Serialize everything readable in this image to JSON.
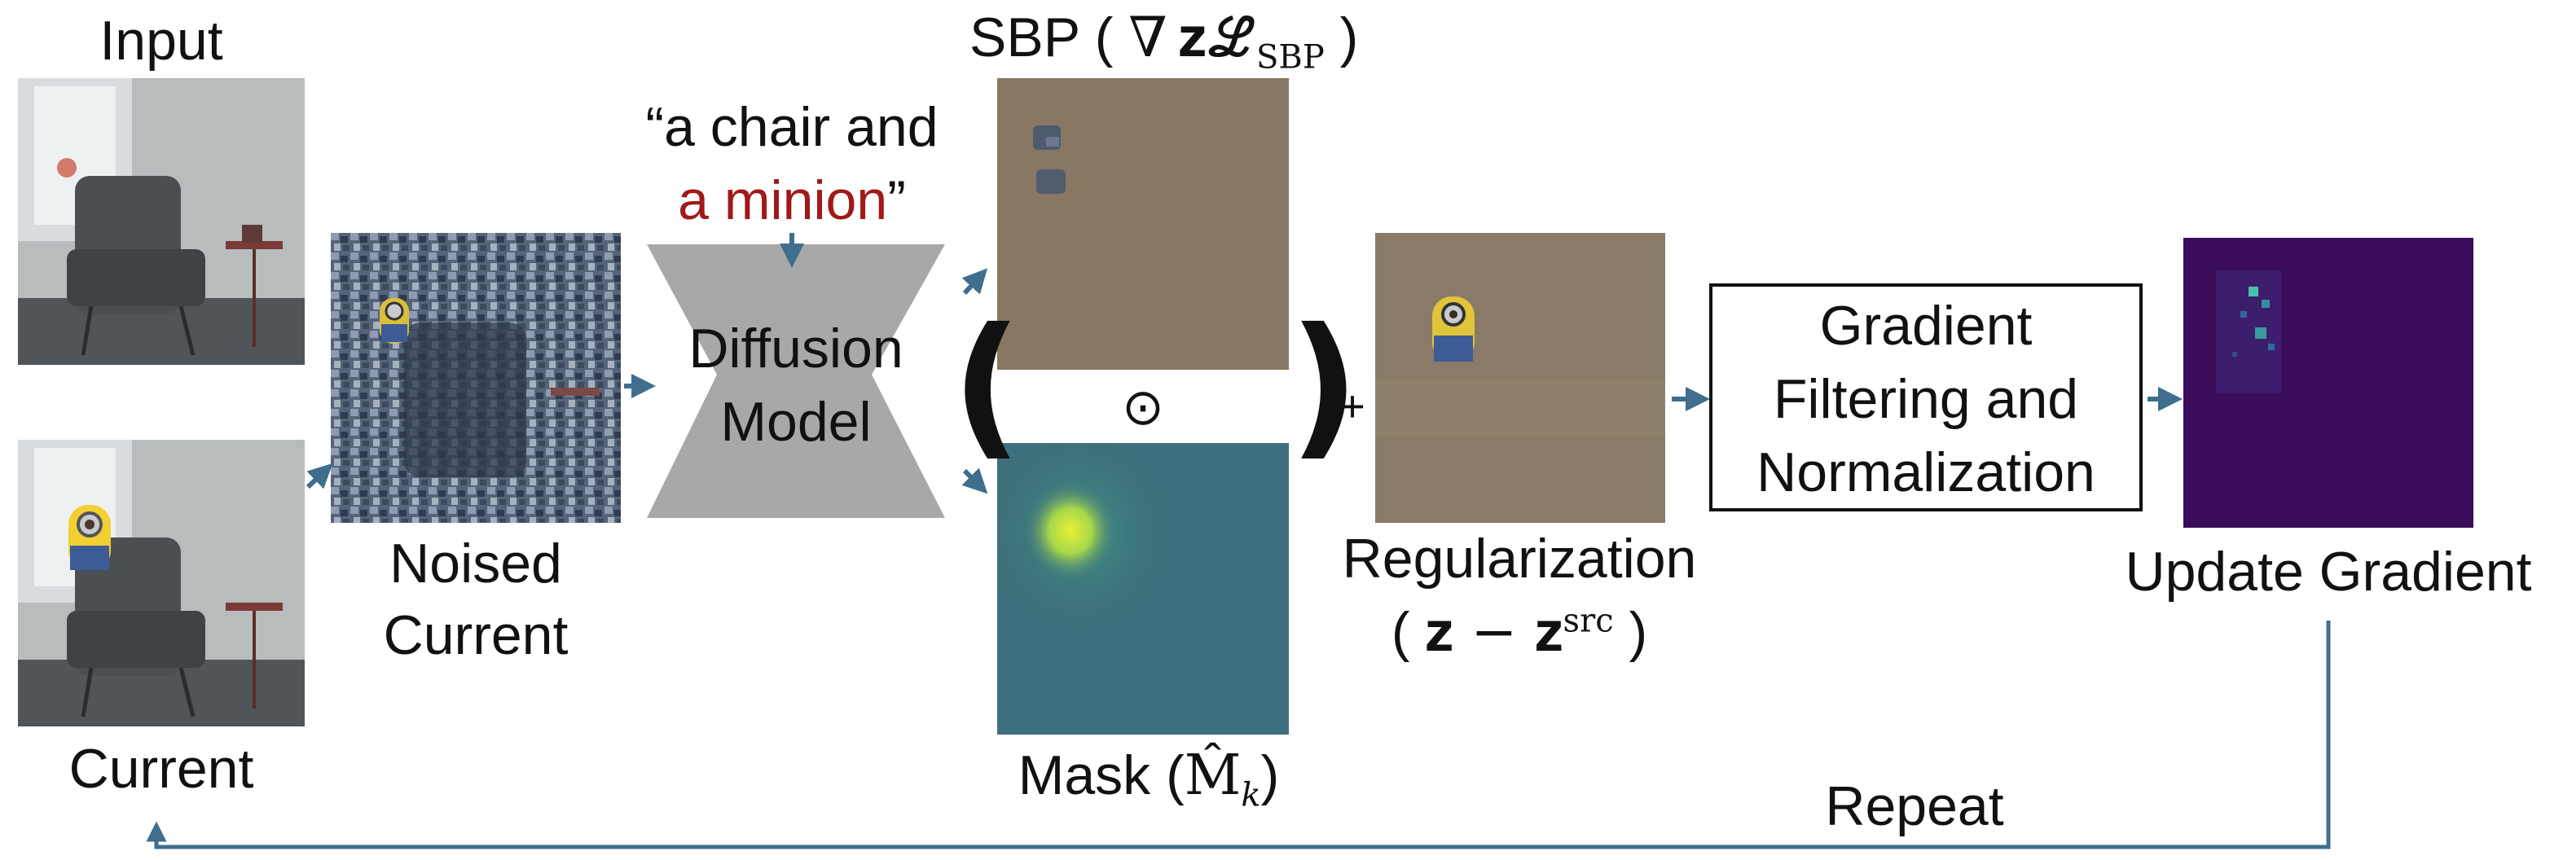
{
  "labels": {
    "input": "Input",
    "current": "Current",
    "noised_line1": "Noised",
    "noised_line2": "Current",
    "prompt_prefix": "“a chair and",
    "prompt_highlight": "a minion",
    "prompt_suffix": "”",
    "model_line1": "Diffusion",
    "model_line2": "Model",
    "sbp_text": "SBP (",
    "sbp_math": "∇ 𝐳ℒ",
    "sbp_sub": "SBP",
    "sbp_close": ")",
    "odot": "⊙",
    "plus": "+",
    "paren_open": "(",
    "paren_close": ")",
    "mask_text": "Mask (",
    "mask_math": "M̂",
    "mask_sub": "k",
    "mask_close": ")",
    "reg_line1": "Regularization",
    "reg_math_open": "(",
    "reg_math": "𝐳 − 𝐳",
    "reg_sup": "src",
    "reg_math_close": ")",
    "filter_line1": "Gradient",
    "filter_line2": "Filtering and",
    "filter_line3": "Normalization",
    "update": "Update Gradient",
    "repeat": "Repeat"
  },
  "colors": {
    "arrow": "#3f6e8e",
    "highlight": "#a01818",
    "model_fill": "#a8a8a8",
    "sbp_bg": "#8b7a66",
    "mask_bg": "#3e6f7c",
    "gradient_bg": "#3b0c5a"
  }
}
